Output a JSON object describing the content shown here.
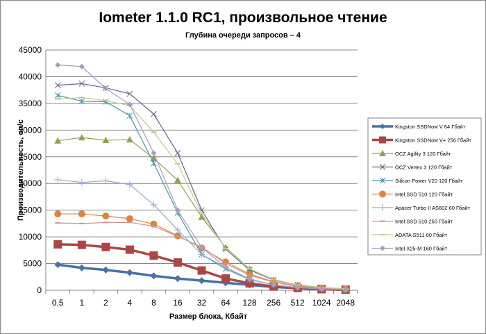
{
  "chart_data": {
    "type": "line",
    "title": "Iometer 1.1.0 RC1, произвольное чтение",
    "subtitle": "Глубина очереди запросов – 4",
    "xlabel": "Размер блока, Кбайт",
    "ylabel": "Производительность, оп/с",
    "ylim": [
      0,
      45000
    ],
    "yticks": [
      0,
      5000,
      10000,
      15000,
      20000,
      25000,
      30000,
      35000,
      40000,
      45000
    ],
    "ytick_labels": [
      "0",
      "5000",
      "10000",
      "15000",
      "20000",
      "25000",
      "30000",
      "35000",
      "40000",
      "45000"
    ],
    "categories": [
      "0,5",
      "1",
      "2",
      "4",
      "8",
      "16",
      "32",
      "64",
      "128",
      "256",
      "512",
      "1024",
      "2048"
    ],
    "grid": true,
    "legend": "right",
    "series": [
      {
        "name": "Kingston SSDNow  V 64 Гбайт",
        "color": "#4572a7",
        "marker": "diamond",
        "width": 3,
        "values": [
          4800,
          4200,
          3800,
          3300,
          2700,
          2200,
          1800,
          1400,
          1000,
          600,
          400,
          200,
          100
        ]
      },
      {
        "name": "Kingston SSDNow  V+ 256 Гбайт",
        "color": "#aa4643",
        "marker": "square",
        "width": 3,
        "values": [
          8600,
          8500,
          8100,
          7600,
          6500,
          5200,
          3700,
          2200,
          1300,
          700,
          400,
          200,
          100
        ]
      },
      {
        "name": "OCZ Agility  3 120 Гбайт",
        "color": "#89a54e",
        "marker": "triangle",
        "width": 1,
        "values": [
          28000,
          28600,
          28100,
          28200,
          24700,
          20600,
          13700,
          8000,
          4000,
          2000,
          1000,
          500,
          250
        ]
      },
      {
        "name": "OCZ Vertex  3 120 Гбайт",
        "color": "#71588f",
        "marker": "x",
        "width": 1,
        "values": [
          38400,
          38700,
          37900,
          36800,
          33000,
          25700,
          15000,
          7700,
          3800,
          1900,
          1000,
          500,
          250
        ]
      },
      {
        "name": "Silicon  Power  V20 120 Гбайт",
        "color": "#4198af",
        "marker": "star",
        "width": 1,
        "values": [
          36500,
          35400,
          35300,
          32700,
          23800,
          14500,
          6700,
          4000,
          2000,
          1000,
          500,
          250,
          120
        ]
      },
      {
        "name": "Intel  SSD 510 120 Гбайт",
        "color": "#db843d",
        "marker": "circle",
        "width": 1,
        "values": [
          14300,
          14300,
          13900,
          13400,
          12400,
          10200,
          7900,
          5300,
          3000,
          1600,
          800,
          400,
          200
        ]
      },
      {
        "name": "Apacer  Turbo  II  AS602 60 Гбайт",
        "color": "#93a9cf",
        "marker": "plus",
        "width": 1,
        "values": [
          20700,
          20200,
          20500,
          19800,
          16000,
          11300,
          6700,
          4300,
          2100,
          1000,
          500,
          250,
          120
        ]
      },
      {
        "name": "Intel  SSD 510 250 Гбайт",
        "color": "#d19392",
        "marker": "dash",
        "width": 1,
        "values": [
          12600,
          12500,
          12700,
          12700,
          12000,
          10100,
          8100,
          5000,
          2800,
          1500,
          700,
          350,
          170
        ]
      },
      {
        "name": "ADATA  S511 60 Гбайт",
        "color": "#b9cd96",
        "marker": "dash",
        "width": 1,
        "values": [
          35800,
          36100,
          35500,
          34600,
          29600,
          23700,
          14300,
          7800,
          4000,
          2000,
          1000,
          500,
          250
        ]
      },
      {
        "name": "Intel  X25-M 160 Гбайт",
        "color": "#a99bbd",
        "marker": "diamond",
        "width": 1,
        "values": [
          42200,
          41900,
          37800,
          34800,
          25700,
          15000,
          8000,
          4300,
          2000,
          1000,
          500,
          250,
          120
        ]
      }
    ]
  }
}
